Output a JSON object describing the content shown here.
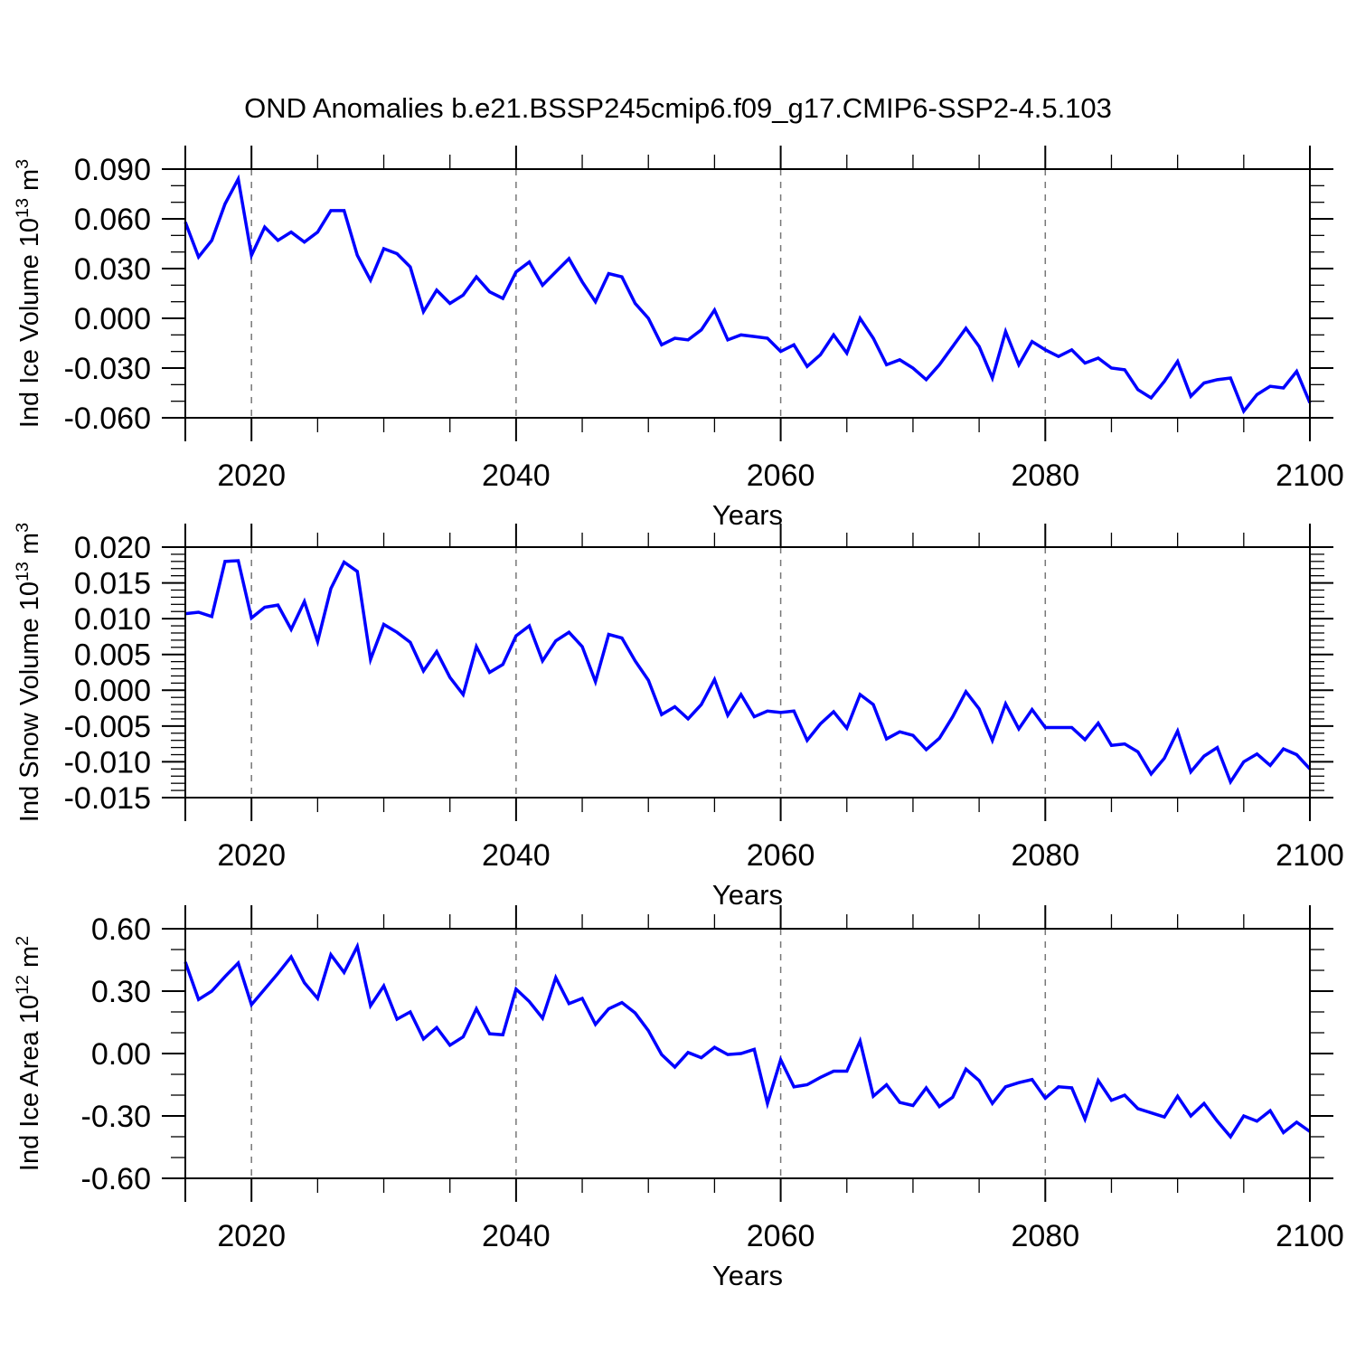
{
  "title": "OND Anomalies b.e21.BSSP245cmip6.f09_g17.CMIP6-SSP2-4.5.103",
  "line_color": "#0000FF",
  "gridline_color": "#777777",
  "chart_data": [
    {
      "id": "ice-volume",
      "type": "line",
      "ylabel": "Ind Ice Volume 10^13 m^3",
      "xlabel": "Years",
      "years_start": 2015,
      "years_end": 2100,
      "xlim": [
        2015,
        2100
      ],
      "x_major_ticks": [
        2020,
        2040,
        2060,
        2080,
        2100
      ],
      "x_minor_step": 5,
      "x_gridlines": [
        2020,
        2040,
        2060,
        2080
      ],
      "ylim": [
        -0.06,
        0.09
      ],
      "y_major_ticks": [
        0.09,
        0.06,
        0.03,
        0.0,
        -0.03,
        -0.06
      ],
      "y_minor_step": 0.01,
      "y_tick_decimals": 3,
      "values": [
        0.058,
        0.037,
        0.047,
        0.069,
        0.084,
        0.038,
        0.055,
        0.047,
        0.052,
        0.046,
        0.052,
        0.065,
        0.065,
        0.038,
        0.023,
        0.042,
        0.039,
        0.031,
        0.004,
        0.017,
        0.009,
        0.014,
        0.025,
        0.016,
        0.012,
        0.028,
        0.034,
        0.02,
        0.028,
        0.036,
        0.022,
        0.01,
        0.027,
        0.025,
        0.009,
        0.0,
        -0.016,
        -0.012,
        -0.013,
        -0.007,
        0.005,
        -0.013,
        -0.01,
        -0.011,
        -0.012,
        -0.02,
        -0.016,
        -0.029,
        -0.022,
        -0.01,
        -0.021,
        0.0,
        -0.012,
        -0.028,
        -0.025,
        -0.03,
        -0.037,
        -0.028,
        -0.017,
        -0.006,
        -0.017,
        -0.036,
        -0.008,
        -0.028,
        -0.014,
        -0.019,
        -0.023,
        -0.019,
        -0.027,
        -0.024,
        -0.03,
        -0.031,
        -0.043,
        -0.048,
        -0.038,
        -0.026,
        -0.047,
        -0.039,
        -0.037,
        -0.036,
        -0.056,
        -0.046,
        -0.041,
        -0.042,
        -0.032,
        -0.051
      ]
    },
    {
      "id": "snow-volume",
      "type": "line",
      "ylabel": "Ind Snow Volume 10^13 m^3",
      "xlabel": "Years",
      "years_start": 2015,
      "years_end": 2100,
      "xlim": [
        2015,
        2100
      ],
      "x_major_ticks": [
        2020,
        2040,
        2060,
        2080,
        2100
      ],
      "x_minor_step": 5,
      "x_gridlines": [
        2020,
        2040,
        2060,
        2080
      ],
      "ylim": [
        -0.015,
        0.02
      ],
      "y_major_ticks": [
        0.02,
        0.015,
        0.01,
        0.005,
        0.0,
        -0.005,
        -0.01,
        -0.015
      ],
      "y_minor_step": 0.001,
      "y_tick_decimals": 3,
      "values": [
        0.0107,
        0.0109,
        0.0103,
        0.018,
        0.0181,
        0.0101,
        0.0116,
        0.0119,
        0.0085,
        0.0124,
        0.0068,
        0.0142,
        0.0179,
        0.0166,
        0.0043,
        0.0092,
        0.0081,
        0.0067,
        0.0027,
        0.0054,
        0.0018,
        -0.0006,
        0.0061,
        0.0025,
        0.0036,
        0.0076,
        0.009,
        0.0041,
        0.0069,
        0.0081,
        0.0061,
        0.0012,
        0.0078,
        0.0073,
        0.0041,
        0.0014,
        -0.0034,
        -0.0023,
        -0.004,
        -0.002,
        0.0015,
        -0.0035,
        -0.0006,
        -0.0037,
        -0.0029,
        -0.0031,
        -0.0029,
        -0.007,
        -0.0047,
        -0.003,
        -0.0053,
        -0.0006,
        -0.002,
        -0.0068,
        -0.0058,
        -0.0063,
        -0.0083,
        -0.0067,
        -0.0037,
        -0.0002,
        -0.0026,
        -0.007,
        -0.0019,
        -0.0054,
        -0.0027,
        -0.0052,
        -0.0052,
        -0.0052,
        -0.0069,
        -0.0046,
        -0.0077,
        -0.0075,
        -0.0086,
        -0.0117,
        -0.0095,
        -0.0057,
        -0.0114,
        -0.0092,
        -0.008,
        -0.0128,
        -0.01,
        -0.0089,
        -0.0105,
        -0.0082,
        -0.009,
        -0.011
      ]
    },
    {
      "id": "ice-area",
      "type": "line",
      "ylabel": "Ind Ice Area 10^12 m^2",
      "xlabel": "Years",
      "years_start": 2015,
      "years_end": 2100,
      "xlim": [
        2015,
        2100
      ],
      "x_major_ticks": [
        2020,
        2040,
        2060,
        2080,
        2100
      ],
      "x_minor_step": 5,
      "x_gridlines": [
        2020,
        2040,
        2060,
        2080
      ],
      "ylim": [
        -0.6,
        0.6
      ],
      "y_major_ticks": [
        0.6,
        0.3,
        0.0,
        -0.3,
        -0.6
      ],
      "y_minor_step": 0.1,
      "y_tick_decimals": 2,
      "values": [
        0.44,
        0.26,
        0.3,
        0.37,
        0.435,
        0.235,
        0.31,
        0.385,
        0.465,
        0.34,
        0.265,
        0.475,
        0.39,
        0.515,
        0.23,
        0.325,
        0.165,
        0.2,
        0.07,
        0.125,
        0.04,
        0.08,
        0.215,
        0.095,
        0.09,
        0.31,
        0.25,
        0.17,
        0.365,
        0.24,
        0.265,
        0.14,
        0.215,
        0.245,
        0.195,
        0.11,
        -0.005,
        -0.065,
        0.005,
        -0.02,
        0.03,
        -0.005,
        0.0,
        0.02,
        -0.24,
        -0.03,
        -0.16,
        -0.15,
        -0.115,
        -0.085,
        -0.085,
        0.06,
        -0.205,
        -0.15,
        -0.235,
        -0.25,
        -0.165,
        -0.255,
        -0.21,
        -0.075,
        -0.13,
        -0.24,
        -0.16,
        -0.14,
        -0.125,
        -0.215,
        -0.16,
        -0.165,
        -0.315,
        -0.13,
        -0.225,
        -0.2,
        -0.265,
        -0.285,
        -0.305,
        -0.205,
        -0.3,
        -0.24,
        -0.325,
        -0.4,
        -0.3,
        -0.325,
        -0.275,
        -0.38,
        -0.33,
        -0.375
      ]
    }
  ]
}
